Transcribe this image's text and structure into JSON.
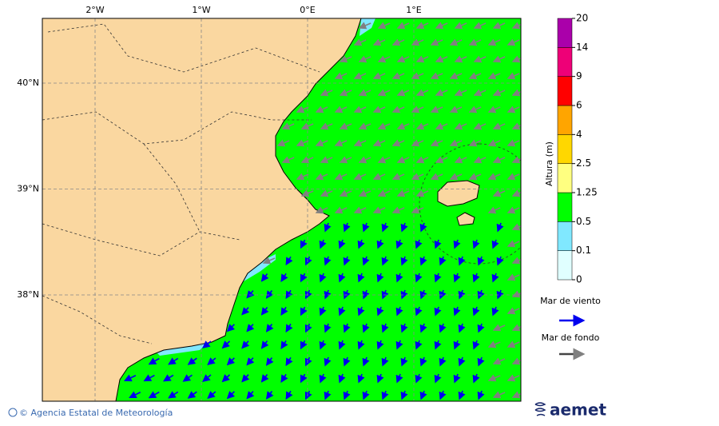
{
  "map": {
    "lon_labels": [
      "2°W",
      "1°W",
      "0°E",
      "1°E"
    ],
    "lat_labels": [
      "40°N",
      "39°N",
      "38°N"
    ]
  },
  "colorbar": {
    "label": "Altura (m)",
    "levels": [
      0,
      0.1,
      0.5,
      1.25,
      2.5,
      4,
      6,
      9,
      14,
      20
    ],
    "colors": [
      "#e0ffff",
      "#80e8ff",
      "#00ff00",
      "#ffff80",
      "#ffd700",
      "#ffa500",
      "#ff0000",
      "#ee0077",
      "#aa00aa"
    ]
  },
  "legend": {
    "wind_sea": "Mar de viento",
    "swell": "Mar de fondo"
  },
  "footer": {
    "credit": "© Agencia Estatal de Meteorología",
    "logo": "aemet"
  }
}
